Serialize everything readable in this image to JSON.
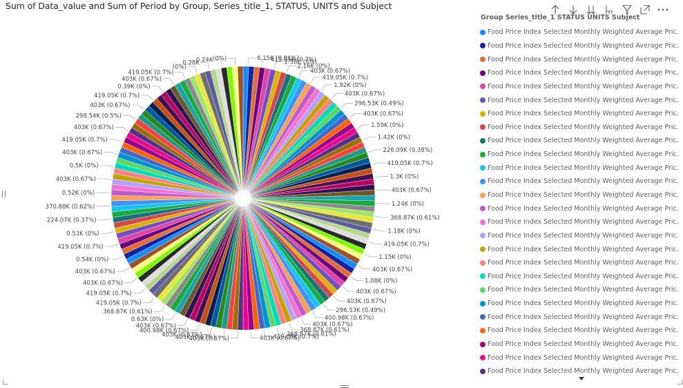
{
  "header": {
    "title": "Sum of Data_value and Sum of Period by Group, Series_title_1, STATUS, UNITS and Subject",
    "icons": [
      "arrow-up-icon",
      "arrow-down-icon",
      "double-arrow-down-icon",
      "expand-hierarchy-icon",
      "filter-icon",
      "focus-mode-icon",
      "more-options-icon"
    ]
  },
  "legend": {
    "title": "Group Series_title_1 STATUS UNITS Subject",
    "item_label": "Food Price Index Selected Monthly Weighted Average Pric...",
    "colors": [
      "#118DFF",
      "#12239E",
      "#E66C37",
      "#6B007B",
      "#E044A7",
      "#744EC2",
      "#D9B300",
      "#D64550",
      "#197278",
      "#1AAB40",
      "#15C6F4",
      "#4092FF",
      "#FFA058",
      "#BE5DC9",
      "#F472D0",
      "#B5A1FF",
      "#C4A200",
      "#FF8080",
      "#00DBBC",
      "#5BD667",
      "#0091D5",
      "#4668C5",
      "#FF6300",
      "#99008A",
      "#EC008C",
      "#533285"
    ]
  },
  "chart_data": {
    "type": "pie",
    "title": "Sum of Data_value and Sum of Period by Group, Series_title_1, STATUS, UNITS and Subject",
    "visible_labels": [
      "6.15K (0.01%)",
      "419.05K (0.7%)",
      "2.38K (0%)",
      "2.16K (0%)",
      "403K (0.67%)",
      "419.05K (0.7%)",
      "1.92K (0%)",
      "403K (0.67%)",
      "296.53K (0.49%)",
      "403K (0.67%)",
      "1.59K (0%)",
      "1.42K (0%)",
      "226.09K (0.38%)",
      "419.05K (0.7%)",
      "1.3K (0%)",
      "403K (0.67%)",
      "1.24K (0%)",
      "368.87K (0.61%)",
      "1.18K (0%)",
      "419.05K (0.7%)",
      "1.15K (0%)",
      "403K (0.67%)",
      "1.08K (0%)",
      "403K (0.67%)",
      "403K (0.67%)",
      "296.53K (0.49%)",
      "400.98K (0.67%)",
      "403K (0.67%)",
      "368.87K (0.61%)",
      "368.87K (0.61%)",
      "419.05K (0.7%)",
      "403K (0.67%)",
      "403K (0.67%)",
      "403K (0.67%)",
      "403K (0.67%)",
      "400.98K (0.67%)",
      "403K (0.67%)",
      "0.63K (0%)",
      "368.87K (0.61%)",
      "419.05K (0.7%)",
      "419.05K (0.7%)",
      "403K (0.67%)",
      "403K (0.67%)",
      "0.54K (0%)",
      "419.05K (0.7%)",
      "0.53K (0%)",
      "224.07K (0.37%)",
      "370.88K (0.62%)",
      "0.52K (0%)",
      "403K (0.67%)",
      "0.5K (0%)",
      "403K (0.67%)",
      "419.05K (0.7%)",
      "403K (0.67%)",
      "298.54K (0.5%)",
      "403K (0.67%)",
      "419.05K (0.7%)",
      "0.39K (0%)",
      "403K (0.67%)",
      "419.05K (0.7%)",
      "(0%)",
      "0.28K",
      "0.24K",
      "(0%)"
    ],
    "slice_count": 150,
    "slice_colors": [
      "#118DFF",
      "#12239E",
      "#E66C37",
      "#6B007B",
      "#E044A7",
      "#744EC2",
      "#D9B300",
      "#D64550",
      "#197278",
      "#1AAB40",
      "#15C6F4",
      "#4092FF",
      "#FFA058",
      "#BE5DC9",
      "#F472D0",
      "#B5A1FF",
      "#C4A200",
      "#FF8080",
      "#00DBBC",
      "#5BD667",
      "#0091D5",
      "#4668C5",
      "#FF6300",
      "#99008A",
      "#EC008C",
      "#533285",
      "#99700A",
      "#FF4141",
      "#1F9A85",
      "#25891C",
      "#0057A2",
      "#002050",
      "#C94F0F",
      "#450F54",
      "#B60064",
      "#34124F",
      "#6A5A29",
      "#1BA2AB",
      "#1AAB40",
      "#8A8A8A",
      "#A3E26C",
      "#E8E83A",
      "#6E6E6E",
      "#5C5C9E",
      "#B8D68C",
      "#DDDDDD",
      "#2A2A2A",
      "#7CFC00",
      "#FFFF80",
      "#A0522D"
    ]
  }
}
